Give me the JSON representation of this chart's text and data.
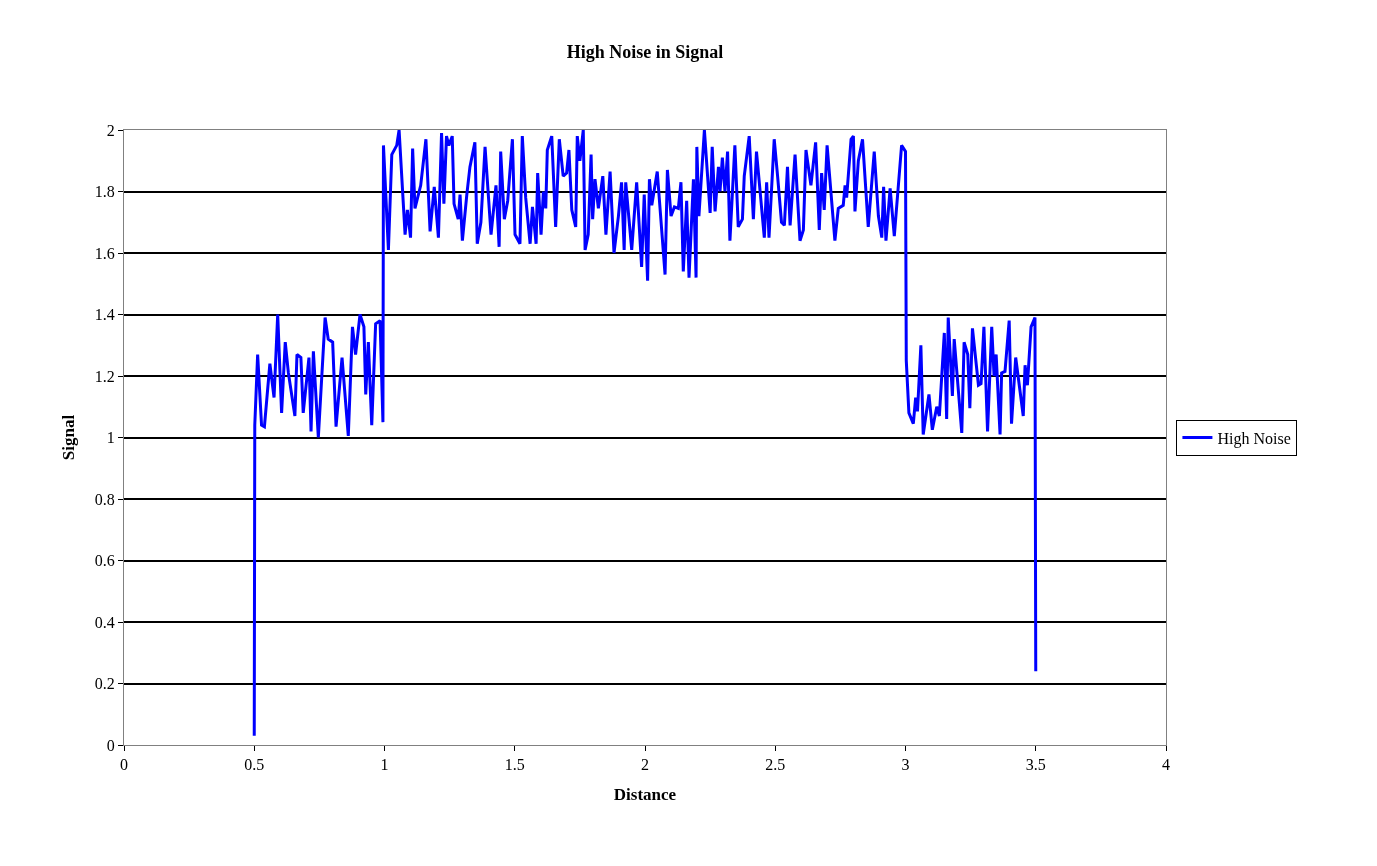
{
  "chart_data": {
    "type": "line",
    "title": "High Noise in Signal",
    "xlabel": "Distance",
    "ylabel": "Signal",
    "xlim": [
      0,
      4
    ],
    "xticks": [
      0,
      0.5,
      1,
      1.5,
      2,
      2.5,
      3,
      3.5,
      4
    ],
    "ylim": [
      0,
      2
    ],
    "yticks": [
      0,
      0.2,
      0.4,
      0.6,
      0.8,
      1,
      1.2,
      1.4,
      1.6,
      1.8,
      2
    ],
    "grid": "y",
    "legend": "right",
    "marker": "none",
    "line_style": "solid",
    "series": [
      {
        "name": "High Noise",
        "color": "#0000ff",
        "x": [
          0.5,
          0.502,
          0.513,
          0.528,
          0.539,
          0.56,
          0.576,
          0.59,
          0.605,
          0.619,
          0.631,
          0.656,
          0.664,
          0.679,
          0.688,
          0.71,
          0.718,
          0.727,
          0.746,
          0.772,
          0.784,
          0.801,
          0.814,
          0.837,
          0.861,
          0.877,
          0.889,
          0.906,
          0.921,
          0.928,
          0.938,
          0.951,
          0.966,
          0.983,
          0.994,
          0.996,
          1.015,
          1.028,
          1.047,
          1.056,
          1.079,
          1.088,
          1.1,
          1.108,
          1.117,
          1.139,
          1.159,
          1.175,
          1.191,
          1.207,
          1.219,
          1.228,
          1.238,
          1.247,
          1.26,
          1.267,
          1.283,
          1.29,
          1.299,
          1.316,
          1.328,
          1.347,
          1.356,
          1.37,
          1.386,
          1.409,
          1.428,
          1.44,
          1.446,
          1.46,
          1.473,
          1.491,
          1.501,
          1.52,
          1.529,
          1.542,
          1.559,
          1.568,
          1.582,
          1.588,
          1.601,
          1.61,
          1.619,
          1.625,
          1.642,
          1.657,
          1.671,
          1.686,
          1.699,
          1.708,
          1.719,
          1.734,
          1.74,
          1.75,
          1.763,
          1.77,
          1.782,
          1.793,
          1.799,
          1.808,
          1.821,
          1.838,
          1.85,
          1.866,
          1.881,
          1.898,
          1.91,
          1.92,
          1.926,
          1.949,
          1.968,
          1.987,
          1.997,
          2.01,
          2.017,
          2.026,
          2.047,
          2.077,
          2.086,
          2.1,
          2.113,
          2.128,
          2.138,
          2.147,
          2.16,
          2.169,
          2.186,
          2.196,
          2.199,
          2.207,
          2.228,
          2.25,
          2.258,
          2.269,
          2.282,
          2.288,
          2.297,
          2.307,
          2.317,
          2.326,
          2.345,
          2.358,
          2.374,
          2.381,
          2.4,
          2.416,
          2.428,
          2.458,
          2.467,
          2.476,
          2.496,
          2.509,
          2.524,
          2.535,
          2.547,
          2.557,
          2.576,
          2.595,
          2.608,
          2.618,
          2.637,
          2.655,
          2.669,
          2.678,
          2.688,
          2.699,
          2.729,
          2.742,
          2.761,
          2.768,
          2.774,
          2.791,
          2.8,
          2.806,
          2.819,
          2.835,
          2.857,
          2.88,
          2.896,
          2.909,
          2.916,
          2.925,
          2.941,
          2.957,
          2.985,
          3.0,
          3.003,
          3.013,
          3.03,
          3.039,
          3.046,
          3.059,
          3.068,
          3.09,
          3.103,
          3.12,
          3.13,
          3.149,
          3.158,
          3.164,
          3.18,
          3.187,
          3.216,
          3.225,
          3.239,
          3.247,
          3.257,
          3.28,
          3.29,
          3.301,
          3.315,
          3.331,
          3.34,
          3.348,
          3.363,
          3.369,
          3.382,
          3.398,
          3.407,
          3.423,
          3.452,
          3.459,
          3.468,
          3.482,
          3.497,
          3.5
        ],
        "values": [
          0.03,
          1.04,
          1.27,
          1.04,
          1.035,
          1.24,
          1.13,
          1.4,
          1.08,
          1.31,
          1.21,
          1.07,
          1.27,
          1.26,
          1.08,
          1.26,
          1.02,
          1.28,
          1.0,
          1.39,
          1.32,
          1.31,
          1.035,
          1.26,
          1.005,
          1.36,
          1.27,
          1.4,
          1.36,
          1.14,
          1.31,
          1.04,
          1.37,
          1.38,
          1.05,
          1.95,
          1.61,
          1.92,
          1.95,
          2.0,
          1.66,
          1.74,
          1.65,
          1.94,
          1.745,
          1.82,
          1.97,
          1.67,
          1.815,
          1.65,
          1.99,
          1.76,
          1.98,
          1.95,
          1.98,
          1.76,
          1.71,
          1.79,
          1.64,
          1.79,
          1.88,
          1.96,
          1.63,
          1.7,
          1.945,
          1.66,
          1.82,
          1.62,
          1.93,
          1.71,
          1.77,
          1.97,
          1.66,
          1.63,
          1.98,
          1.78,
          1.63,
          1.75,
          1.63,
          1.86,
          1.66,
          1.8,
          1.745,
          1.935,
          1.98,
          1.685,
          1.97,
          1.85,
          1.86,
          1.935,
          1.74,
          1.685,
          1.98,
          1.9,
          2.0,
          1.61,
          1.66,
          1.92,
          1.71,
          1.84,
          1.745,
          1.85,
          1.66,
          1.865,
          1.6,
          1.72,
          1.83,
          1.61,
          1.83,
          1.61,
          1.83,
          1.555,
          1.79,
          1.51,
          1.84,
          1.755,
          1.865,
          1.53,
          1.87,
          1.72,
          1.75,
          1.745,
          1.83,
          1.54,
          1.77,
          1.52,
          1.84,
          1.52,
          1.945,
          1.72,
          2.0,
          1.73,
          1.945,
          1.735,
          1.88,
          1.8,
          1.91,
          1.8,
          1.93,
          1.64,
          1.95,
          1.685,
          1.71,
          1.85,
          1.98,
          1.71,
          1.93,
          1.65,
          1.83,
          1.65,
          1.97,
          1.85,
          1.7,
          1.69,
          1.88,
          1.69,
          1.92,
          1.64,
          1.675,
          1.935,
          1.82,
          1.96,
          1.675,
          1.86,
          1.74,
          1.95,
          1.64,
          1.745,
          1.755,
          1.82,
          1.78,
          1.97,
          1.98,
          1.735,
          1.9,
          1.97,
          1.685,
          1.93,
          1.72,
          1.65,
          1.815,
          1.64,
          1.81,
          1.655,
          1.95,
          1.93,
          1.25,
          1.08,
          1.045,
          1.13,
          1.085,
          1.3,
          1.01,
          1.14,
          1.025,
          1.1,
          1.07,
          1.34,
          1.06,
          1.39,
          1.135,
          1.32,
          1.015,
          1.31,
          1.27,
          1.095,
          1.355,
          1.17,
          1.175,
          1.36,
          1.02,
          1.36,
          1.2,
          1.27,
          1.01,
          1.21,
          1.215,
          1.38,
          1.045,
          1.26,
          1.07,
          1.235,
          1.17,
          1.36,
          1.39,
          0.24
        ]
      }
    ]
  }
}
